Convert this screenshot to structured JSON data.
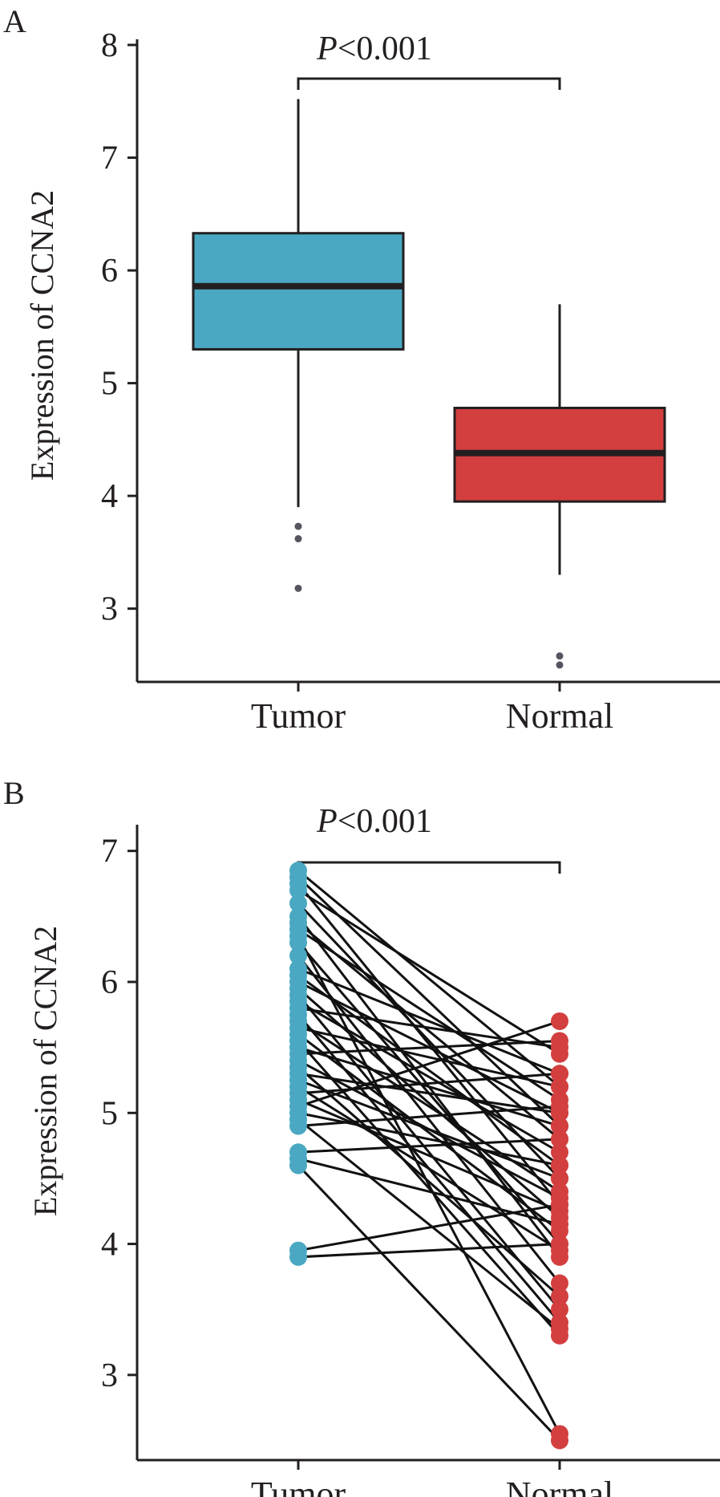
{
  "chart_data": [
    {
      "panel_label": "A",
      "type": "box",
      "title": "",
      "xlabel": "",
      "ylabel": "Expression of CCNA2",
      "ylim": [
        2.35,
        8.05
      ],
      "yticks": [
        3,
        4,
        5,
        6,
        7,
        8
      ],
      "categories": [
        "Tumor",
        "Normal"
      ],
      "annotation": {
        "p_prefix": "P",
        "p_rest": "<0.001"
      },
      "grid": false,
      "legend": "none",
      "boxes": [
        {
          "category": "Tumor",
          "color": "#4aa8c2",
          "whisker_low": 3.9,
          "q1": 5.3,
          "median": 5.86,
          "q3": 6.33,
          "whisker_high": 7.52,
          "outliers": [
            3.73,
            3.62,
            3.18
          ]
        },
        {
          "category": "Normal",
          "color": "#d33f3f",
          "whisker_low": 3.3,
          "q1": 3.95,
          "median": 4.38,
          "q3": 4.78,
          "whisker_high": 5.7,
          "outliers": [
            2.58,
            2.5
          ]
        }
      ]
    },
    {
      "panel_label": "B",
      "type": "paired-scatter",
      "title": "",
      "xlabel": "",
      "ylabel": "Expression of CCNA2",
      "ylim": [
        2.35,
        7.2
      ],
      "yticks": [
        3,
        4,
        5,
        6,
        7
      ],
      "categories": [
        "Tumor",
        "Normal"
      ],
      "annotation": {
        "p_prefix": "P",
        "p_rest": "<0.001"
      },
      "grid": false,
      "legend": "none",
      "colors": {
        "Tumor": "#4aa8c2",
        "Normal": "#d33f3f"
      },
      "pairs": [
        [
          6.85,
          5.2
        ],
        [
          6.8,
          4.9
        ],
        [
          6.75,
          4.3
        ],
        [
          6.7,
          5.45
        ],
        [
          6.6,
          4.5
        ],
        [
          6.5,
          3.9
        ],
        [
          6.45,
          4.8
        ],
        [
          6.4,
          5.1
        ],
        [
          6.35,
          2.55
        ],
        [
          6.3,
          4.0
        ],
        [
          6.2,
          3.7
        ],
        [
          6.1,
          5.3
        ],
        [
          6.05,
          4.6
        ],
        [
          6.0,
          5.0
        ],
        [
          5.95,
          4.2
        ],
        [
          5.9,
          3.5
        ],
        [
          5.85,
          4.7
        ],
        [
          5.8,
          5.5
        ],
        [
          5.75,
          3.4
        ],
        [
          5.7,
          4.4
        ],
        [
          5.65,
          5.2
        ],
        [
          5.6,
          4.1
        ],
        [
          5.55,
          3.3
        ],
        [
          5.5,
          4.9
        ],
        [
          5.45,
          5.55
        ],
        [
          5.4,
          4.35
        ],
        [
          5.35,
          3.6
        ],
        [
          5.3,
          5.0
        ],
        [
          5.25,
          4.5
        ],
        [
          5.2,
          3.95
        ],
        [
          5.15,
          5.3
        ],
        [
          5.1,
          4.25
        ],
        [
          5.05,
          5.7
        ],
        [
          5.0,
          4.6
        ],
        [
          4.95,
          3.35
        ],
        [
          4.9,
          5.05
        ],
        [
          4.7,
          4.8
        ],
        [
          4.65,
          4.15
        ],
        [
          4.6,
          2.5
        ],
        [
          3.95,
          4.3
        ],
        [
          3.9,
          4.0
        ]
      ]
    }
  ]
}
